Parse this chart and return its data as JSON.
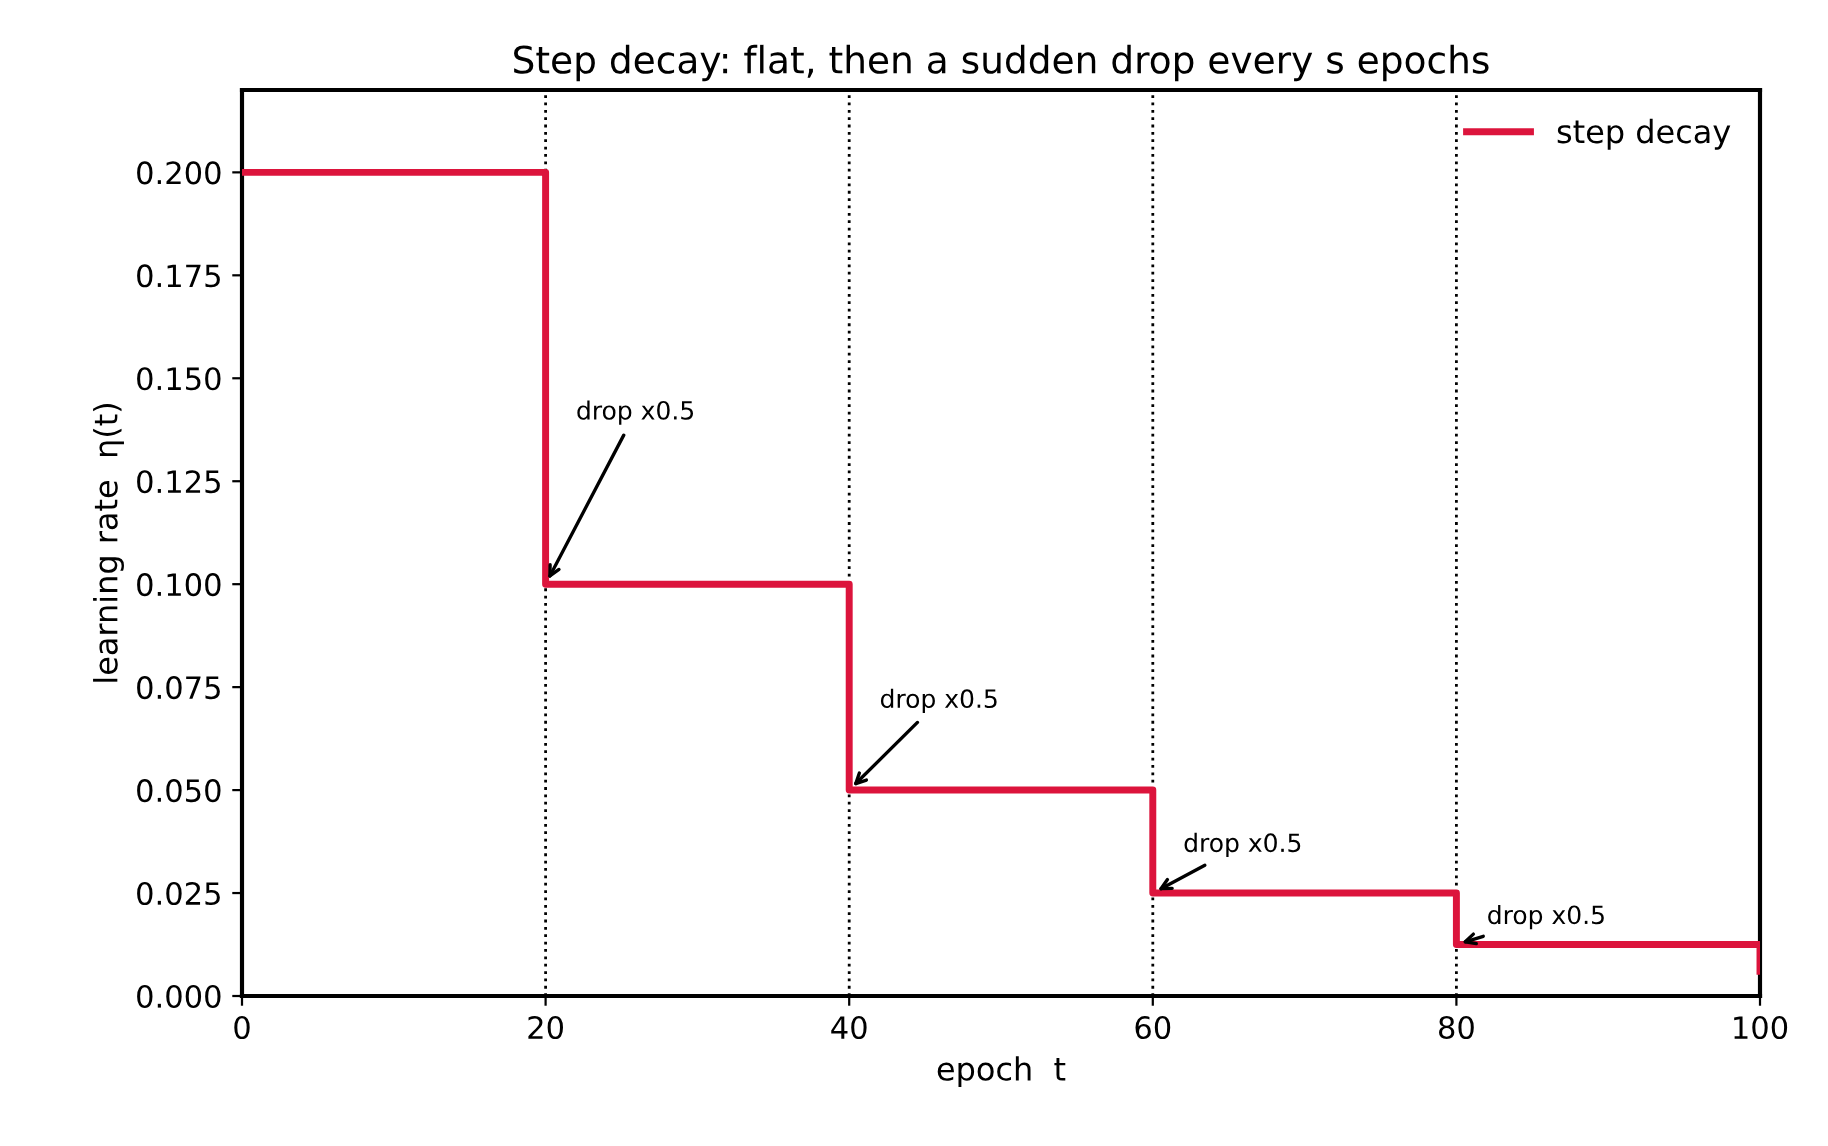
{
  "chart_data": {
    "type": "step",
    "title": "Step decay: flat, then a sudden drop every s epochs",
    "xlabel": "epoch  t",
    "ylabel": "learning rate  η(t)",
    "x": [
      0,
      20,
      40,
      60,
      80,
      100
    ],
    "series": [
      {
        "name": "step decay",
        "color": "#dc143c",
        "values": [
          0.2,
          0.1,
          0.05,
          0.025,
          0.0125,
          0.006
        ]
      }
    ],
    "xlim": [
      0,
      100
    ],
    "ylim": [
      0,
      0.22
    ],
    "xticks": [
      0,
      20,
      40,
      60,
      80,
      100
    ],
    "yticks": [
      {
        "value": 0,
        "label": "0.000"
      },
      {
        "value": 0.025,
        "label": "0.025"
      },
      {
        "value": 0.05,
        "label": "0.050"
      },
      {
        "value": 0.075,
        "label": "0.075"
      },
      {
        "value": 0.1,
        "label": "0.100"
      },
      {
        "value": 0.125,
        "label": "0.125"
      },
      {
        "value": 0.15,
        "label": "0.150"
      },
      {
        "value": 0.175,
        "label": "0.175"
      },
      {
        "value": 0.2,
        "label": "0.200"
      }
    ],
    "ref_lines": [
      {
        "axis": "x",
        "value": 20,
        "color": "#000000",
        "line_style": "dotted"
      },
      {
        "axis": "x",
        "value": 40,
        "color": "#000000",
        "line_style": "dotted"
      },
      {
        "axis": "x",
        "value": 60,
        "color": "#000000",
        "line_style": "dotted"
      },
      {
        "axis": "x",
        "value": 80,
        "color": "#000000",
        "line_style": "dotted"
      }
    ],
    "annotations": [
      {
        "text": "drop x0.5",
        "x": 20,
        "y": 0.1
      },
      {
        "text": "drop x0.5",
        "x": 40,
        "y": 0.05
      },
      {
        "text": "drop x0.5",
        "x": 60,
        "y": 0.025
      },
      {
        "text": "drop x0.5",
        "x": 80,
        "y": 0.0125
      }
    ],
    "legend": "top right",
    "grid": false
  }
}
